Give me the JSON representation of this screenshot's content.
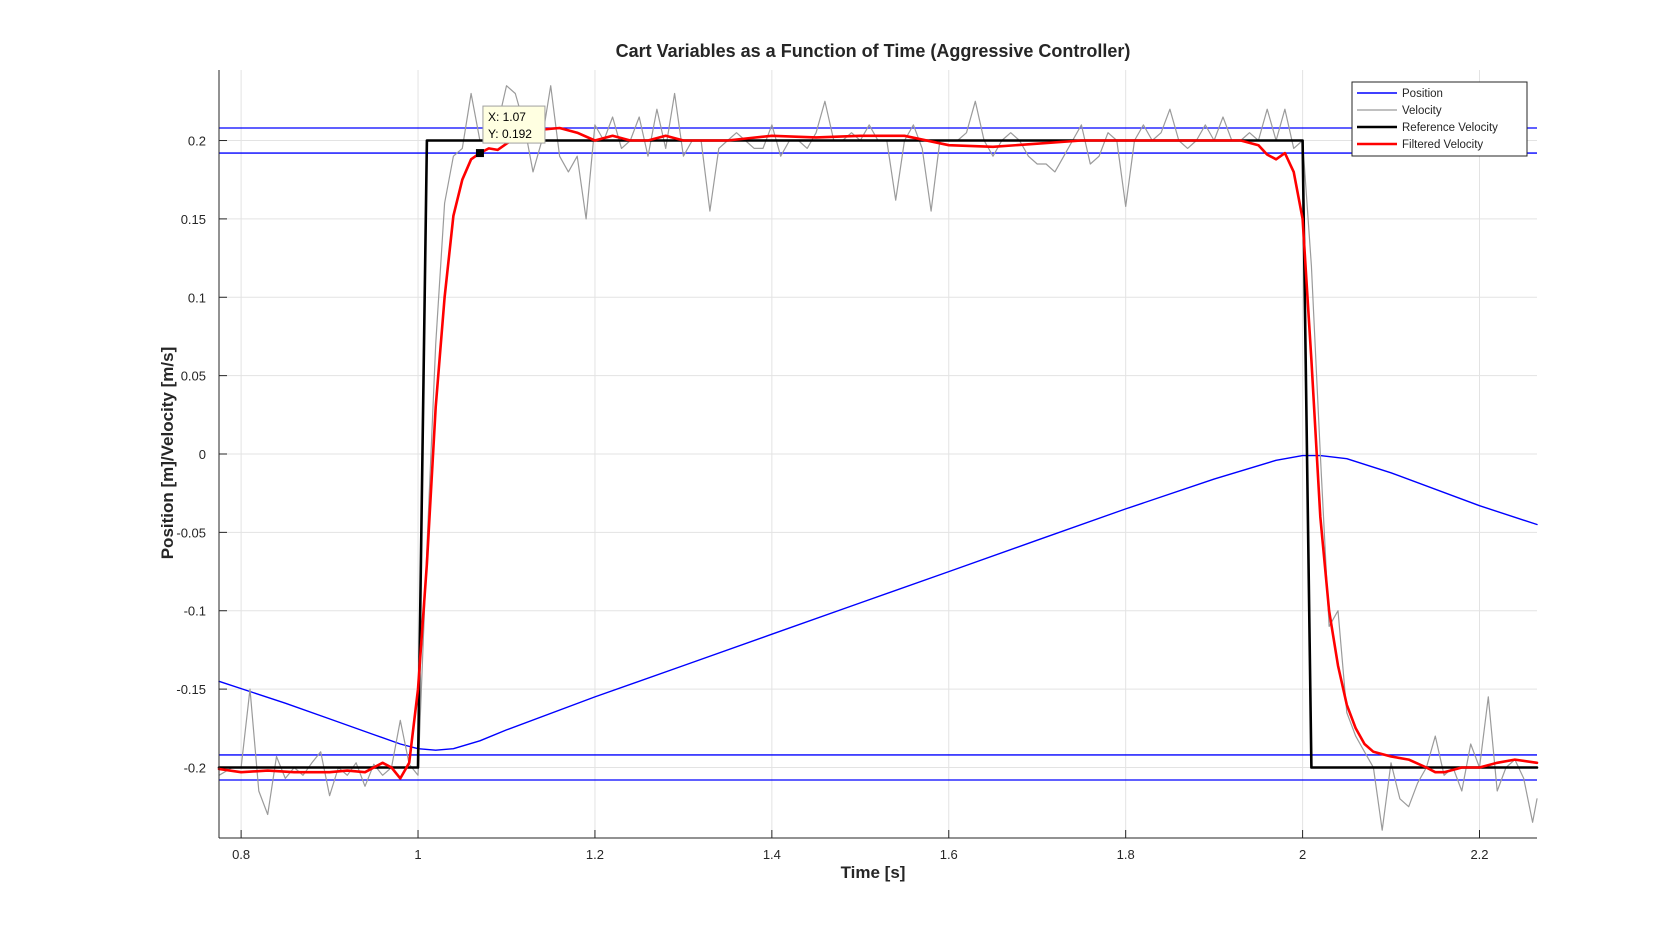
{
  "chart_data": {
    "type": "line",
    "title": "Cart Variables as a Function of Time (Aggressive Controller)",
    "xlabel": "Time [s]",
    "ylabel": "Position [m]/Velocity [m/s]",
    "xlim": [
      0.775,
      2.265
    ],
    "ylim": [
      -0.245,
      0.245
    ],
    "xticks": [
      0.8,
      1,
      1.2,
      1.4,
      1.6,
      1.8,
      2,
      2.2
    ],
    "xtick_labels": [
      "0.8",
      "1",
      "1.2",
      "1.4",
      "1.6",
      "1.8",
      "2",
      "2.2"
    ],
    "yticks": [
      0.2,
      0.15,
      0.1,
      0.05,
      0,
      -0.05,
      -0.1,
      -0.15,
      -0.2
    ],
    "ytick_labels": [
      "0.2",
      "0.15",
      "0.1",
      "0.05",
      "0",
      "-0.05",
      "-0.1",
      "-0.15",
      "-0.2"
    ],
    "grid": true,
    "legend_position": "top-right",
    "reference_lines": [
      0.208,
      0.192,
      -0.192,
      -0.208
    ],
    "reference_line_color": "#0000ff",
    "series": [
      {
        "name": "Position",
        "color": "#0000ff",
        "style": "thin",
        "points": [
          [
            0.775,
            -0.145
          ],
          [
            0.85,
            -0.159
          ],
          [
            0.9,
            -0.169
          ],
          [
            0.95,
            -0.179
          ],
          [
            0.98,
            -0.185
          ],
          [
            1.0,
            -0.188
          ],
          [
            1.02,
            -0.189
          ],
          [
            1.04,
            -0.188
          ],
          [
            1.07,
            -0.183
          ],
          [
            1.1,
            -0.176
          ],
          [
            1.2,
            -0.155
          ],
          [
            1.3,
            -0.135
          ],
          [
            1.4,
            -0.115
          ],
          [
            1.5,
            -0.095
          ],
          [
            1.6,
            -0.075
          ],
          [
            1.7,
            -0.055
          ],
          [
            1.8,
            -0.035
          ],
          [
            1.9,
            -0.016
          ],
          [
            1.97,
            -0.004
          ],
          [
            2.0,
            -0.001
          ],
          [
            2.02,
            -0.001
          ],
          [
            2.05,
            -0.003
          ],
          [
            2.1,
            -0.012
          ],
          [
            2.2,
            -0.033
          ],
          [
            2.265,
            -0.045
          ]
        ]
      },
      {
        "name": "Velocity",
        "color": "#9b9b9b",
        "style": "noisy",
        "points": [
          [
            0.775,
            -0.205
          ],
          [
            0.79,
            -0.2
          ],
          [
            0.8,
            -0.2
          ],
          [
            0.81,
            -0.15
          ],
          [
            0.82,
            -0.215
          ],
          [
            0.83,
            -0.23
          ],
          [
            0.84,
            -0.193
          ],
          [
            0.85,
            -0.207
          ],
          [
            0.86,
            -0.2
          ],
          [
            0.87,
            -0.205
          ],
          [
            0.88,
            -0.197
          ],
          [
            0.89,
            -0.19
          ],
          [
            0.9,
            -0.218
          ],
          [
            0.91,
            -0.2
          ],
          [
            0.92,
            -0.205
          ],
          [
            0.93,
            -0.197
          ],
          [
            0.94,
            -0.212
          ],
          [
            0.95,
            -0.198
          ],
          [
            0.96,
            -0.205
          ],
          [
            0.97,
            -0.2
          ],
          [
            0.98,
            -0.17
          ],
          [
            0.99,
            -0.198
          ],
          [
            1.0,
            -0.205
          ],
          [
            1.01,
            -0.06
          ],
          [
            1.02,
            0.07
          ],
          [
            1.03,
            0.16
          ],
          [
            1.04,
            0.19
          ],
          [
            1.05,
            0.195
          ],
          [
            1.06,
            0.23
          ],
          [
            1.07,
            0.2
          ],
          [
            1.08,
            0.2
          ],
          [
            1.09,
            0.21
          ],
          [
            1.1,
            0.235
          ],
          [
            1.11,
            0.23
          ],
          [
            1.12,
            0.21
          ],
          [
            1.13,
            0.18
          ],
          [
            1.14,
            0.2
          ],
          [
            1.15,
            0.235
          ],
          [
            1.16,
            0.19
          ],
          [
            1.17,
            0.18
          ],
          [
            1.18,
            0.19
          ],
          [
            1.19,
            0.15
          ],
          [
            1.2,
            0.21
          ],
          [
            1.21,
            0.2
          ],
          [
            1.22,
            0.215
          ],
          [
            1.23,
            0.195
          ],
          [
            1.24,
            0.2
          ],
          [
            1.25,
            0.215
          ],
          [
            1.26,
            0.19
          ],
          [
            1.27,
            0.22
          ],
          [
            1.28,
            0.195
          ],
          [
            1.29,
            0.23
          ],
          [
            1.3,
            0.19
          ],
          [
            1.31,
            0.2
          ],
          [
            1.32,
            0.2
          ],
          [
            1.33,
            0.155
          ],
          [
            1.34,
            0.195
          ],
          [
            1.35,
            0.2
          ],
          [
            1.36,
            0.205
          ],
          [
            1.37,
            0.2
          ],
          [
            1.38,
            0.195
          ],
          [
            1.39,
            0.195
          ],
          [
            1.4,
            0.21
          ],
          [
            1.41,
            0.19
          ],
          [
            1.42,
            0.2
          ],
          [
            1.43,
            0.2
          ],
          [
            1.44,
            0.195
          ],
          [
            1.45,
            0.205
          ],
          [
            1.46,
            0.225
          ],
          [
            1.47,
            0.2
          ],
          [
            1.48,
            0.2
          ],
          [
            1.49,
            0.205
          ],
          [
            1.5,
            0.2
          ],
          [
            1.51,
            0.21
          ],
          [
            1.52,
            0.2
          ],
          [
            1.53,
            0.2
          ],
          [
            1.54,
            0.162
          ],
          [
            1.55,
            0.2
          ],
          [
            1.56,
            0.21
          ],
          [
            1.57,
            0.195
          ],
          [
            1.58,
            0.155
          ],
          [
            1.59,
            0.2
          ],
          [
            1.6,
            0.2
          ],
          [
            1.61,
            0.2
          ],
          [
            1.62,
            0.205
          ],
          [
            1.63,
            0.225
          ],
          [
            1.64,
            0.2
          ],
          [
            1.65,
            0.19
          ],
          [
            1.66,
            0.2
          ],
          [
            1.67,
            0.205
          ],
          [
            1.68,
            0.2
          ],
          [
            1.69,
            0.19
          ],
          [
            1.7,
            0.185
          ],
          [
            1.71,
            0.185
          ],
          [
            1.72,
            0.18
          ],
          [
            1.73,
            0.19
          ],
          [
            1.74,
            0.2
          ],
          [
            1.75,
            0.21
          ],
          [
            1.76,
            0.185
          ],
          [
            1.77,
            0.19
          ],
          [
            1.78,
            0.205
          ],
          [
            1.79,
            0.2
          ],
          [
            1.8,
            0.158
          ],
          [
            1.81,
            0.2
          ],
          [
            1.82,
            0.21
          ],
          [
            1.83,
            0.2
          ],
          [
            1.84,
            0.205
          ],
          [
            1.85,
            0.22
          ],
          [
            1.86,
            0.2
          ],
          [
            1.87,
            0.195
          ],
          [
            1.88,
            0.2
          ],
          [
            1.89,
            0.21
          ],
          [
            1.9,
            0.2
          ],
          [
            1.91,
            0.215
          ],
          [
            1.92,
            0.2
          ],
          [
            1.93,
            0.2
          ],
          [
            1.94,
            0.205
          ],
          [
            1.95,
            0.2
          ],
          [
            1.96,
            0.22
          ],
          [
            1.97,
            0.2
          ],
          [
            1.98,
            0.22
          ],
          [
            1.99,
            0.195
          ],
          [
            2.0,
            0.2
          ],
          [
            2.01,
            0.12
          ],
          [
            2.02,
            0.0
          ],
          [
            2.03,
            -0.11
          ],
          [
            2.04,
            -0.1
          ],
          [
            2.05,
            -0.165
          ],
          [
            2.06,
            -0.18
          ],
          [
            2.07,
            -0.19
          ],
          [
            2.08,
            -0.2
          ],
          [
            2.09,
            -0.24
          ],
          [
            2.1,
            -0.197
          ],
          [
            2.11,
            -0.22
          ],
          [
            2.12,
            -0.225
          ],
          [
            2.13,
            -0.21
          ],
          [
            2.14,
            -0.2
          ],
          [
            2.15,
            -0.18
          ],
          [
            2.16,
            -0.205
          ],
          [
            2.17,
            -0.2
          ],
          [
            2.18,
            -0.215
          ],
          [
            2.19,
            -0.185
          ],
          [
            2.2,
            -0.2
          ],
          [
            2.21,
            -0.155
          ],
          [
            2.22,
            -0.215
          ],
          [
            2.23,
            -0.2
          ],
          [
            2.24,
            -0.195
          ],
          [
            2.25,
            -0.207
          ],
          [
            2.26,
            -0.235
          ],
          [
            2.265,
            -0.22
          ]
        ]
      },
      {
        "name": "Reference Velocity",
        "color": "#000000",
        "style": "thick",
        "points": [
          [
            0.775,
            -0.2
          ],
          [
            1.0,
            -0.2
          ],
          [
            1.01,
            0.2
          ],
          [
            2.0,
            0.2
          ],
          [
            2.01,
            -0.2
          ],
          [
            2.265,
            -0.2
          ]
        ]
      },
      {
        "name": "Filtered Velocity",
        "color": "#ff0000",
        "style": "thick",
        "points": [
          [
            0.775,
            -0.201
          ],
          [
            0.8,
            -0.203
          ],
          [
            0.83,
            -0.202
          ],
          [
            0.86,
            -0.203
          ],
          [
            0.9,
            -0.203
          ],
          [
            0.92,
            -0.202
          ],
          [
            0.94,
            -0.203
          ],
          [
            0.96,
            -0.197
          ],
          [
            0.97,
            -0.2
          ],
          [
            0.98,
            -0.207
          ],
          [
            0.99,
            -0.197
          ],
          [
            1.0,
            -0.15
          ],
          [
            1.01,
            -0.07
          ],
          [
            1.02,
            0.03
          ],
          [
            1.03,
            0.1
          ],
          [
            1.04,
            0.152
          ],
          [
            1.05,
            0.175
          ],
          [
            1.06,
            0.188
          ],
          [
            1.07,
            0.192
          ],
          [
            1.08,
            0.195
          ],
          [
            1.09,
            0.194
          ],
          [
            1.1,
            0.198
          ],
          [
            1.12,
            0.205
          ],
          [
            1.14,
            0.207
          ],
          [
            1.16,
            0.208
          ],
          [
            1.18,
            0.205
          ],
          [
            1.2,
            0.2
          ],
          [
            1.22,
            0.203
          ],
          [
            1.24,
            0.2
          ],
          [
            1.26,
            0.2
          ],
          [
            1.28,
            0.203
          ],
          [
            1.3,
            0.2
          ],
          [
            1.35,
            0.2
          ],
          [
            1.4,
            0.203
          ],
          [
            1.45,
            0.202
          ],
          [
            1.5,
            0.203
          ],
          [
            1.55,
            0.203
          ],
          [
            1.6,
            0.197
          ],
          [
            1.65,
            0.196
          ],
          [
            1.7,
            0.198
          ],
          [
            1.75,
            0.2
          ],
          [
            1.8,
            0.2
          ],
          [
            1.85,
            0.2
          ],
          [
            1.9,
            0.2
          ],
          [
            1.93,
            0.2
          ],
          [
            1.95,
            0.197
          ],
          [
            1.96,
            0.191
          ],
          [
            1.97,
            0.188
          ],
          [
            1.98,
            0.192
          ],
          [
            1.99,
            0.18
          ],
          [
            2.0,
            0.15
          ],
          [
            2.01,
            0.06
          ],
          [
            2.02,
            -0.04
          ],
          [
            2.03,
            -0.1
          ],
          [
            2.04,
            -0.135
          ],
          [
            2.05,
            -0.16
          ],
          [
            2.06,
            -0.175
          ],
          [
            2.07,
            -0.185
          ],
          [
            2.08,
            -0.19
          ],
          [
            2.1,
            -0.193
          ],
          [
            2.12,
            -0.195
          ],
          [
            2.14,
            -0.2
          ],
          [
            2.15,
            -0.203
          ],
          [
            2.16,
            -0.203
          ],
          [
            2.18,
            -0.2
          ],
          [
            2.2,
            -0.2
          ],
          [
            2.22,
            -0.197
          ],
          [
            2.24,
            -0.195
          ],
          [
            2.265,
            -0.197
          ]
        ]
      }
    ],
    "annotation": {
      "x": 1.07,
      "y": 0.192,
      "line1": "X: 1.07",
      "line2": "Y: 0.192"
    }
  }
}
